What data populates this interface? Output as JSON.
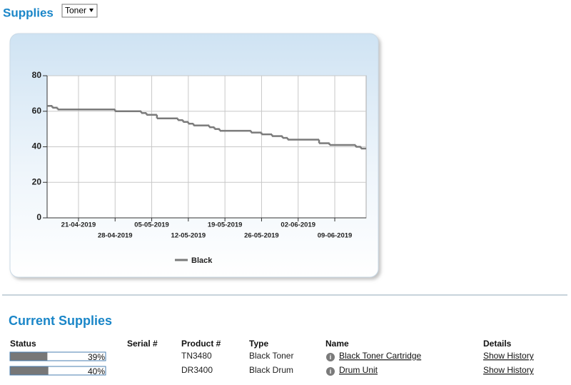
{
  "header": {
    "title": "Supplies",
    "select": "Toner"
  },
  "chart_data": {
    "type": "line",
    "step": "post",
    "x": [
      "15-04-2019",
      "16-04-2019",
      "17-04-2019",
      "28-04-2019",
      "03-05-2019",
      "04-05-2019",
      "06-05-2019",
      "10-05-2019",
      "11-05-2019",
      "12-05-2019",
      "13-05-2019",
      "16-05-2019",
      "17-05-2019",
      "18-05-2019",
      "24-05-2019",
      "26-05-2019",
      "28-05-2019",
      "30-05-2019",
      "31-05-2019",
      "06-06-2019",
      "08-06-2019",
      "13-06-2019",
      "14-06-2019"
    ],
    "series": [
      {
        "name": "Black",
        "color": "#7a7a7a",
        "values": [
          63,
          62,
          61,
          60,
          59,
          58,
          56,
          55,
          54,
          53,
          52,
          51,
          50,
          49,
          48,
          47,
          46,
          45,
          44,
          42,
          41,
          40,
          39
        ]
      }
    ],
    "xlim": [
      "15-04-2019",
      "15-06-2019"
    ],
    "xticks": [
      "21-04-2019",
      "28-04-2019",
      "05-05-2019",
      "12-05-2019",
      "19-05-2019",
      "26-05-2019",
      "02-06-2019",
      "09-06-2019"
    ],
    "ylim": [
      0,
      80
    ],
    "yticks": [
      0,
      20,
      40,
      60,
      80
    ],
    "grid": true
  },
  "current": {
    "title": "Current Supplies",
    "columns": [
      "Status",
      "Serial #",
      "Product #",
      "Type",
      "Name",
      "Details"
    ],
    "rows": [
      {
        "status": {
          "value": 39,
          "label": "39%"
        },
        "product": "TN3480",
        "type": "Black Toner",
        "name": "Black Toner Cartridge",
        "details": "Show History"
      },
      {
        "status": {
          "value": 40,
          "label": "40%"
        },
        "product": "DR3400",
        "type": "Black Drum",
        "name": "Drum Unit",
        "details": "Show History"
      }
    ]
  }
}
